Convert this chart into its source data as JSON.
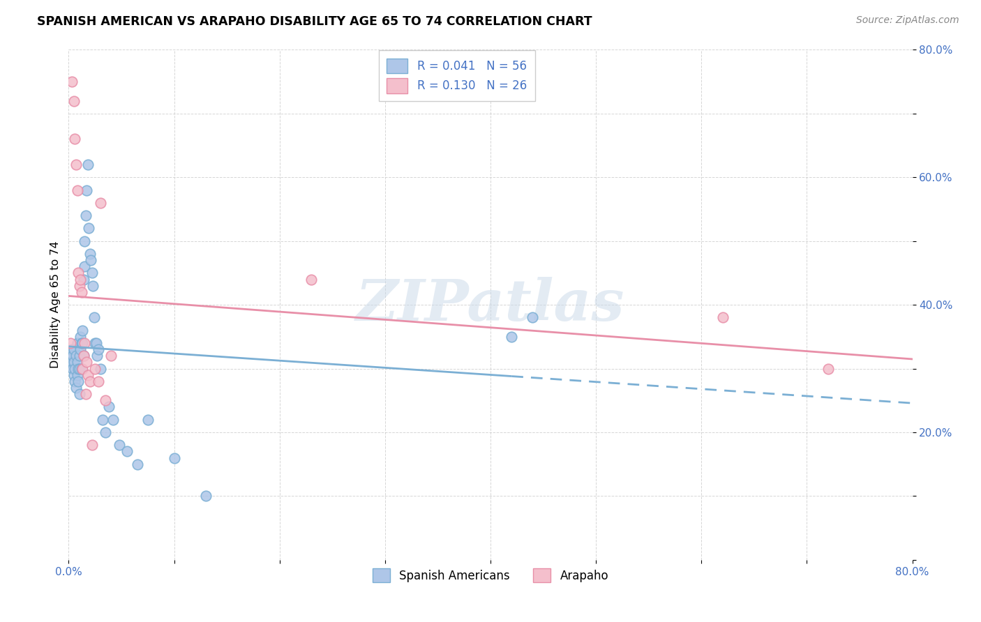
{
  "title": "SPANISH AMERICAN VS ARAPAHO DISABILITY AGE 65 TO 74 CORRELATION CHART",
  "source": "Source: ZipAtlas.com",
  "ylabel": "Disability Age 65 to 74",
  "xlim": [
    0.0,
    0.8
  ],
  "ylim": [
    0.0,
    0.8
  ],
  "blue_color": "#7bafd4",
  "blue_fill": "#aec6e8",
  "pink_color": "#e88fa8",
  "pink_fill": "#f4bfcc",
  "text_color": "#4472c4",
  "grid_color": "#cccccc",
  "watermark": "ZIPatlas",
  "legend1_text": "R = 0.041   N = 56",
  "legend2_text": "R = 0.130   N = 26",
  "legend3_text": "Spanish Americans",
  "legend4_text": "Arapaho",
  "spanish_americans_x": [
    0.002,
    0.003,
    0.003,
    0.004,
    0.004,
    0.005,
    0.005,
    0.005,
    0.006,
    0.006,
    0.007,
    0.007,
    0.008,
    0.008,
    0.008,
    0.009,
    0.009,
    0.01,
    0.01,
    0.01,
    0.011,
    0.011,
    0.012,
    0.012,
    0.013,
    0.013,
    0.014,
    0.014,
    0.015,
    0.015,
    0.016,
    0.017,
    0.018,
    0.019,
    0.02,
    0.021,
    0.022,
    0.023,
    0.024,
    0.025,
    0.026,
    0.027,
    0.028,
    0.03,
    0.032,
    0.035,
    0.038,
    0.042,
    0.048,
    0.055,
    0.065,
    0.075,
    0.1,
    0.13,
    0.42,
    0.44
  ],
  "spanish_americans_y": [
    0.32,
    0.31,
    0.33,
    0.3,
    0.32,
    0.29,
    0.31,
    0.33,
    0.28,
    0.3,
    0.27,
    0.32,
    0.29,
    0.31,
    0.34,
    0.28,
    0.3,
    0.26,
    0.3,
    0.32,
    0.33,
    0.35,
    0.3,
    0.34,
    0.34,
    0.36,
    0.32,
    0.44,
    0.46,
    0.5,
    0.54,
    0.58,
    0.62,
    0.52,
    0.48,
    0.47,
    0.45,
    0.43,
    0.38,
    0.34,
    0.34,
    0.32,
    0.33,
    0.3,
    0.22,
    0.2,
    0.24,
    0.22,
    0.18,
    0.17,
    0.15,
    0.22,
    0.16,
    0.1,
    0.35,
    0.38
  ],
  "arapaho_x": [
    0.002,
    0.003,
    0.005,
    0.006,
    0.007,
    0.008,
    0.009,
    0.01,
    0.011,
    0.012,
    0.013,
    0.014,
    0.015,
    0.016,
    0.017,
    0.018,
    0.02,
    0.022,
    0.025,
    0.028,
    0.03,
    0.035,
    0.04,
    0.23,
    0.62,
    0.72
  ],
  "arapaho_y": [
    0.34,
    0.75,
    0.72,
    0.66,
    0.62,
    0.58,
    0.45,
    0.43,
    0.44,
    0.42,
    0.3,
    0.32,
    0.34,
    0.26,
    0.31,
    0.29,
    0.28,
    0.18,
    0.3,
    0.28,
    0.56,
    0.25,
    0.32,
    0.44,
    0.38,
    0.3
  ],
  "blue_line_solid_end": 0.42,
  "pink_line_solid_end": 0.8
}
